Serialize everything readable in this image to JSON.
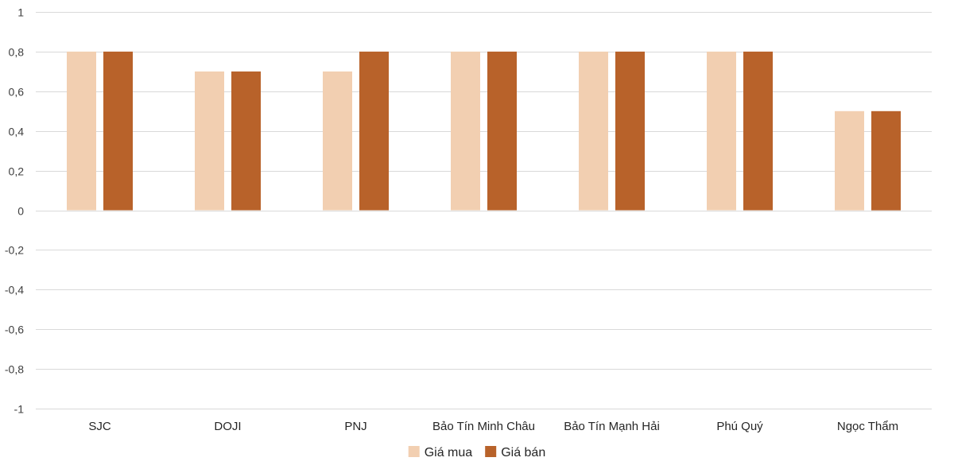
{
  "chart_data": {
    "type": "bar",
    "categories": [
      "SJC",
      "DOJI",
      "PNJ",
      "Bảo Tín Minh Châu",
      "Bảo Tín Mạnh Hải",
      "Phú Quý",
      "Ngọc Thẩm"
    ],
    "series": [
      {
        "name": "Giá mua",
        "color": "#f2cfb1",
        "values": [
          0.8,
          0.7,
          0.7,
          0.8,
          0.8,
          0.8,
          0.5
        ]
      },
      {
        "name": "Giá bán",
        "color": "#b8622a",
        "values": [
          0.8,
          0.7,
          0.8,
          0.8,
          0.8,
          0.8,
          0.5
        ]
      }
    ],
    "title": "",
    "xlabel": "",
    "ylabel": "",
    "ylim": [
      -1,
      1
    ],
    "yticks": [
      1,
      0.8,
      0.6,
      0.4,
      0.2,
      0,
      -0.2,
      -0.4,
      -0.6,
      -0.8,
      -1
    ],
    "ytick_labels": [
      "1",
      "0,8",
      "0,6",
      "0,4",
      "0,2",
      "0",
      "-0,2",
      "-0,4",
      "-0,6",
      "-0,8",
      "-1"
    ],
    "grid": true,
    "legend_position": "bottom"
  }
}
